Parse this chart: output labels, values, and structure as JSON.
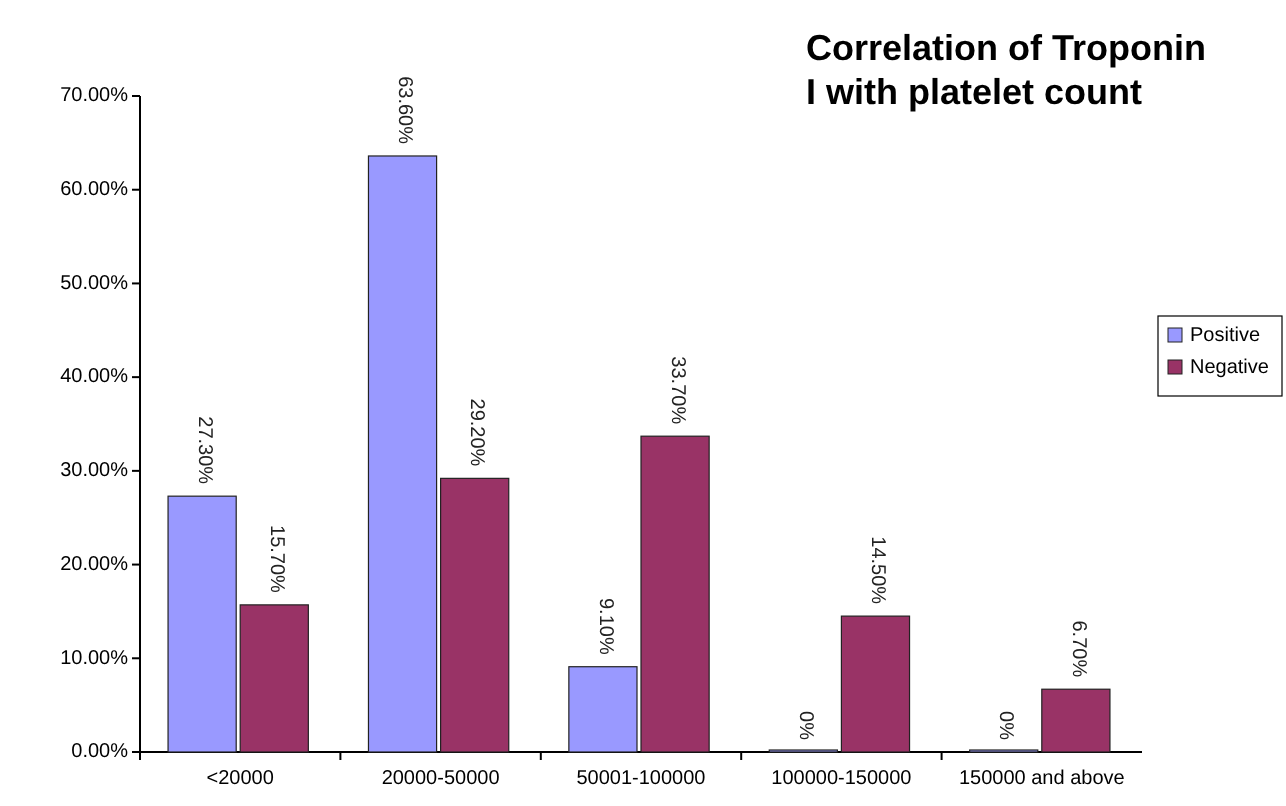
{
  "chart_data": {
    "type": "bar",
    "title": "Correlation of Troponin I with platelet count",
    "categories": [
      "<20000",
      "20000-50000",
      "50001-100000",
      "100000-150000",
      "150000 and above"
    ],
    "series": [
      {
        "name": "Positive",
        "color": "#9999ff",
        "values": [
          27.3,
          63.6,
          9.1,
          0,
          0
        ],
        "value_labels": [
          "27.30%",
          "63.60%",
          "9.10%",
          "0%",
          "0%"
        ]
      },
      {
        "name": "Negative",
        "color": "#993366",
        "values": [
          15.7,
          29.2,
          33.7,
          14.5,
          6.7
        ],
        "value_labels": [
          "15.70%",
          "29.20%",
          "33.70%",
          "14.50%",
          "6.70%"
        ]
      }
    ],
    "ylim": [
      0,
      70
    ],
    "yticks": [
      {
        "value": 0,
        "label": "0.00%"
      },
      {
        "value": 10,
        "label": "10.00%"
      },
      {
        "value": 20,
        "label": "20.00%"
      },
      {
        "value": 30,
        "label": "30.00%"
      },
      {
        "value": 40,
        "label": "40.00%"
      },
      {
        "value": 50,
        "label": "50.00%"
      },
      {
        "value": 60,
        "label": "60.00%"
      },
      {
        "value": 70,
        "label": "70.00%"
      }
    ],
    "legend": "right",
    "grid": false
  }
}
